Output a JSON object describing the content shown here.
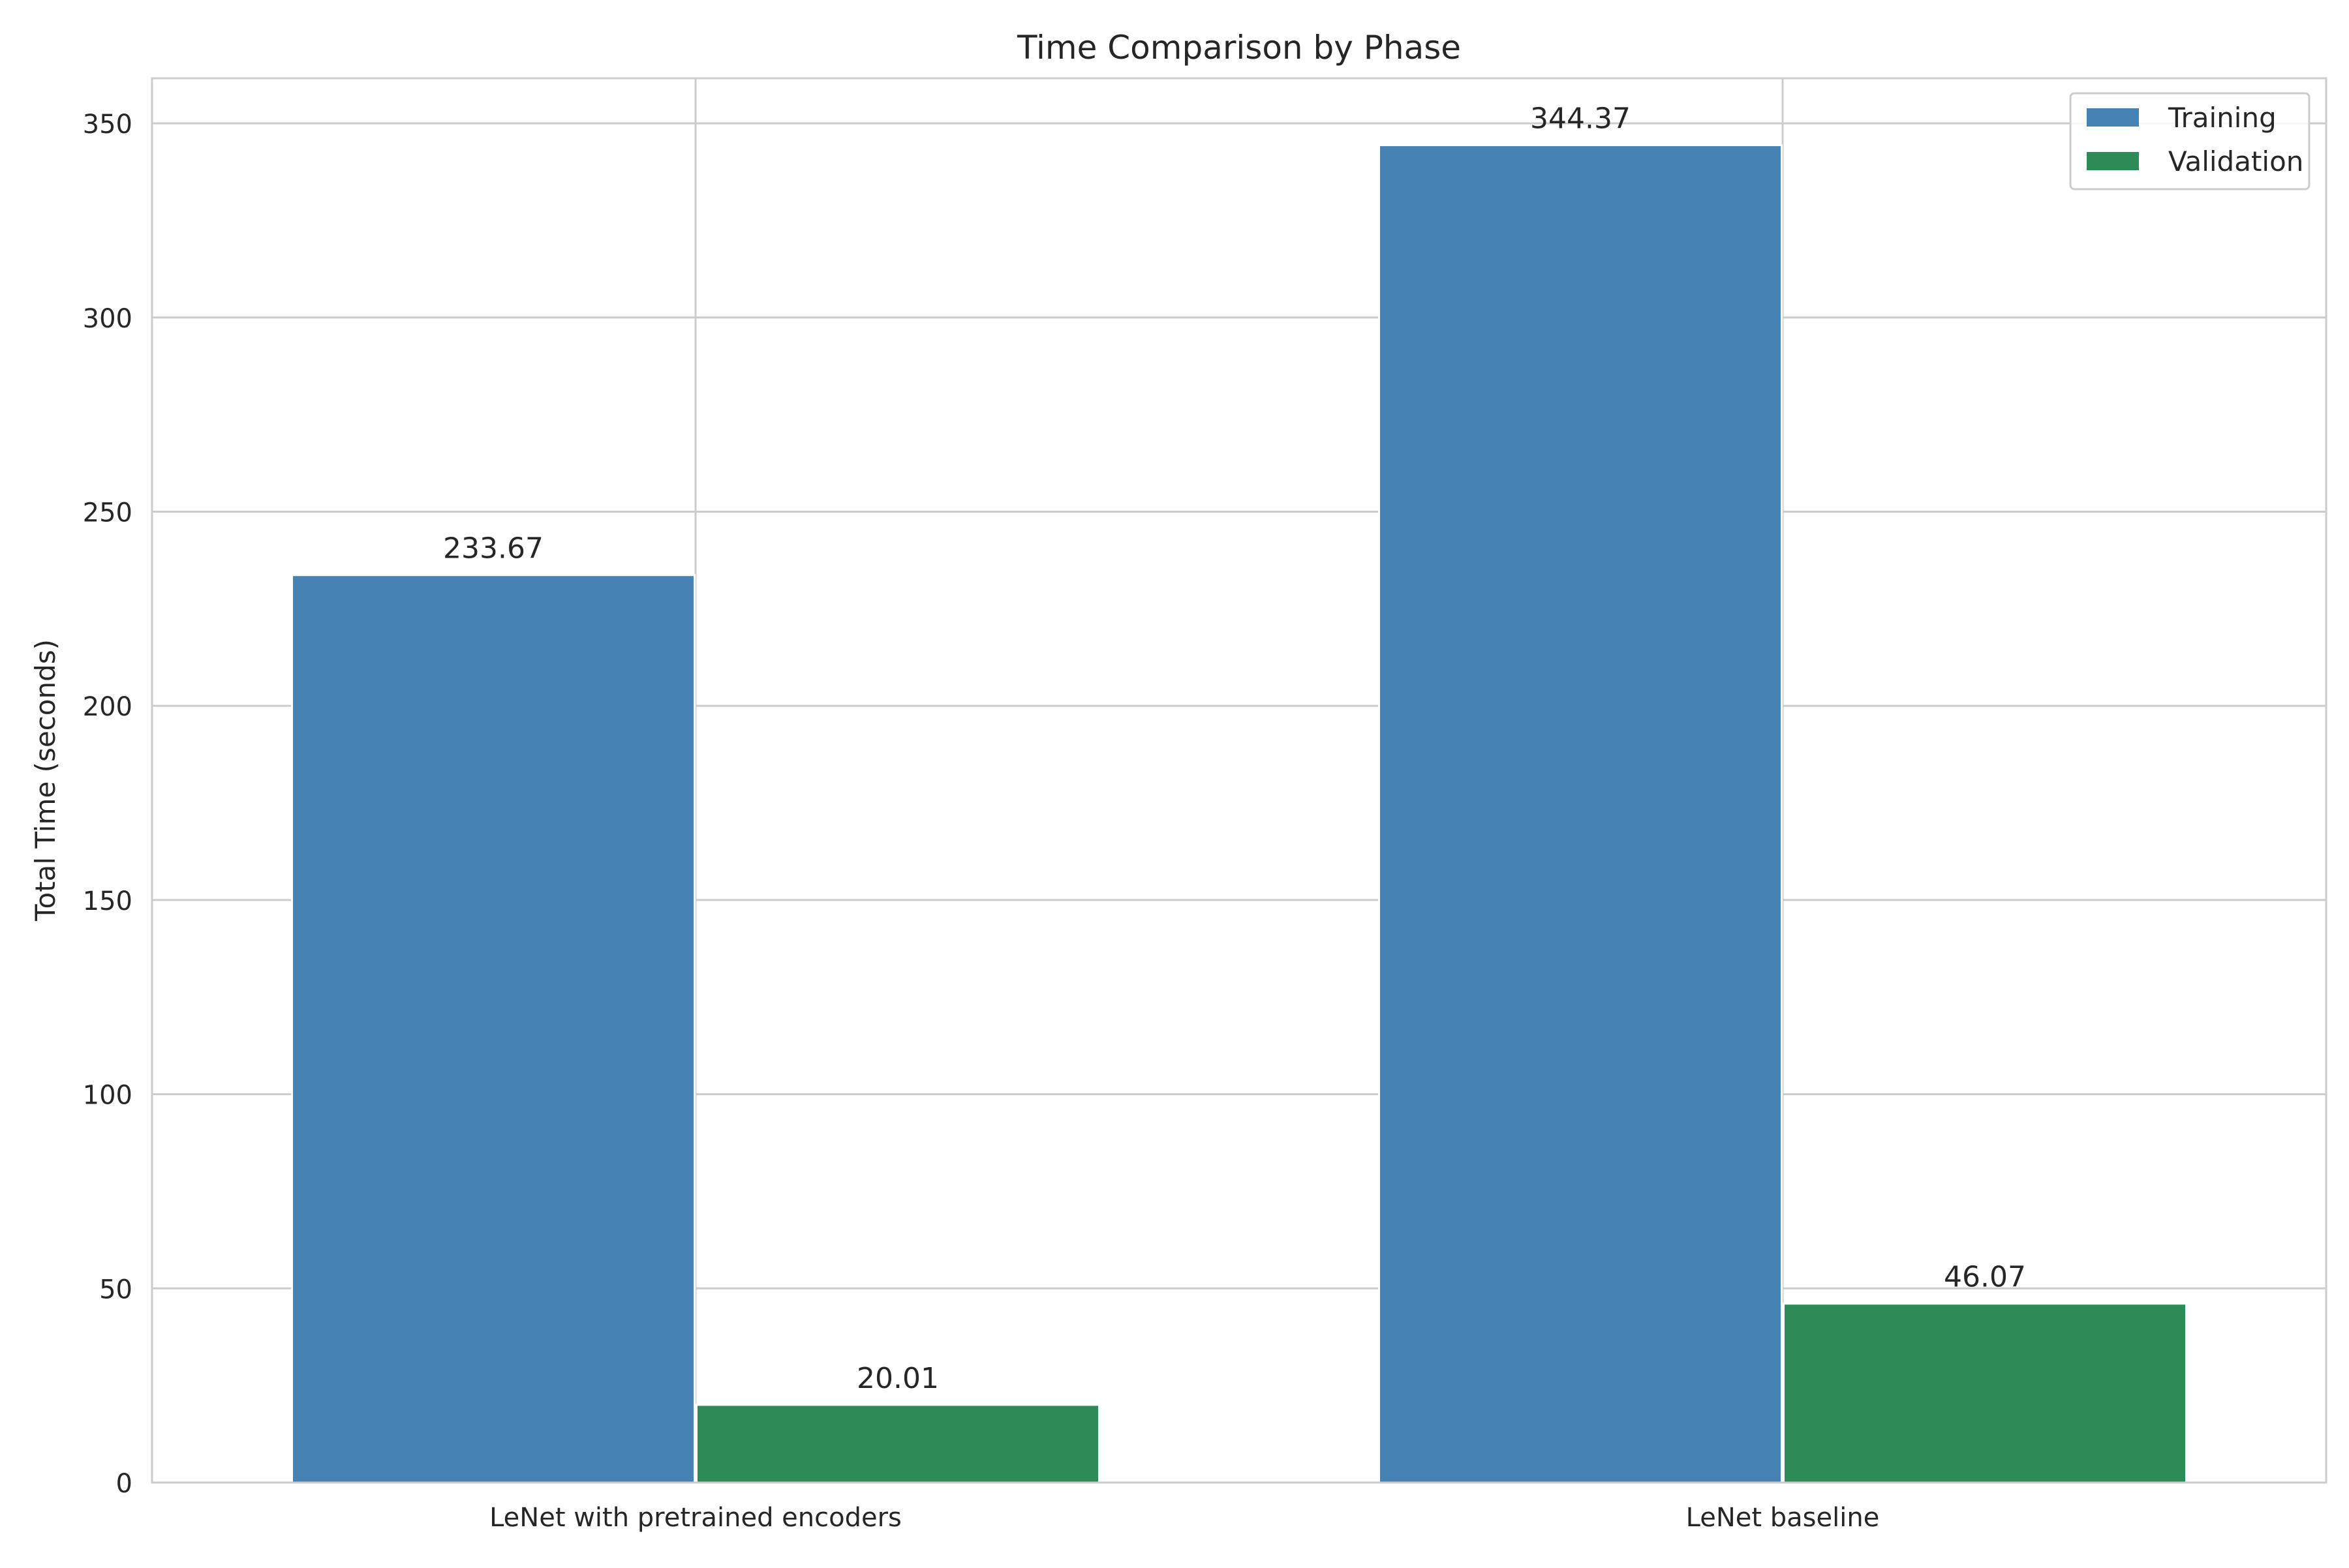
{
  "chart_data": {
    "type": "bar",
    "title": "Time Comparison by Phase",
    "xlabel": "",
    "ylabel": "Total Time (seconds)",
    "categories": [
      "LeNet with pretrained encoders",
      "LeNet baseline"
    ],
    "series": [
      {
        "name": "Training",
        "color": "#4682b4",
        "values": [
          233.67,
          344.37
        ],
        "labels": [
          "233.67",
          "344.37"
        ]
      },
      {
        "name": "Validation",
        "color": "#2e8b57",
        "values": [
          20.01,
          46.07
        ],
        "labels": [
          "20.01",
          "46.07"
        ]
      }
    ],
    "ylim": [
      0,
      361.6
    ],
    "yticks": [
      0,
      50,
      100,
      150,
      200,
      250,
      300,
      350
    ],
    "ytick_labels": [
      "0",
      "50",
      "100",
      "150",
      "200",
      "250",
      "300",
      "350"
    ],
    "grid": true,
    "legend_position": "upper right"
  }
}
